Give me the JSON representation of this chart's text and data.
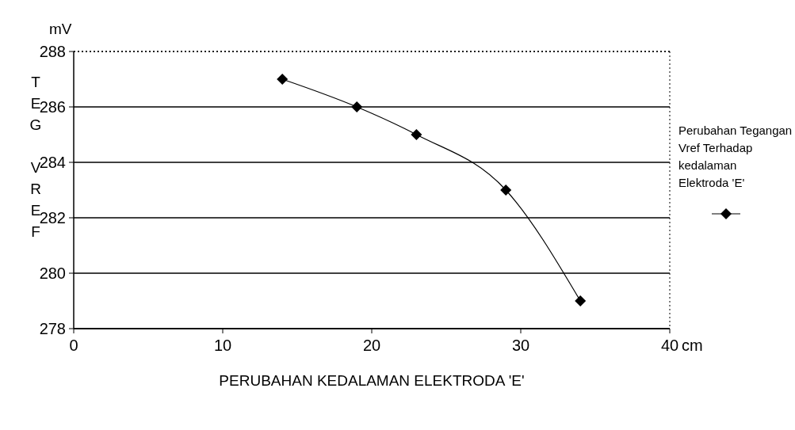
{
  "chart_data": {
    "type": "line",
    "xlabel": "PERUBAHAN KEDALAMAN ELEKTRODA 'E'",
    "ylabel": "TEG VREF",
    "annotations": [
      "mV",
      "cm"
    ],
    "x": [
      14,
      19,
      23,
      29,
      34
    ],
    "series": [
      {
        "name": "Perubahan Tegangan Vref Terhadap kedalaman Elektroda 'E'",
        "color": "#000000",
        "values": [
          287,
          286,
          285,
          283,
          279
        ]
      }
    ],
    "xlim": [
      0,
      40
    ],
    "xticks": [
      0,
      10,
      20,
      30,
      40
    ],
    "ylim": [
      278,
      288
    ],
    "yticks": [
      278,
      280,
      282,
      284,
      286,
      288
    ],
    "grid": "y",
    "legend": "right",
    "marker": "diamond",
    "line_style": "solid"
  }
}
